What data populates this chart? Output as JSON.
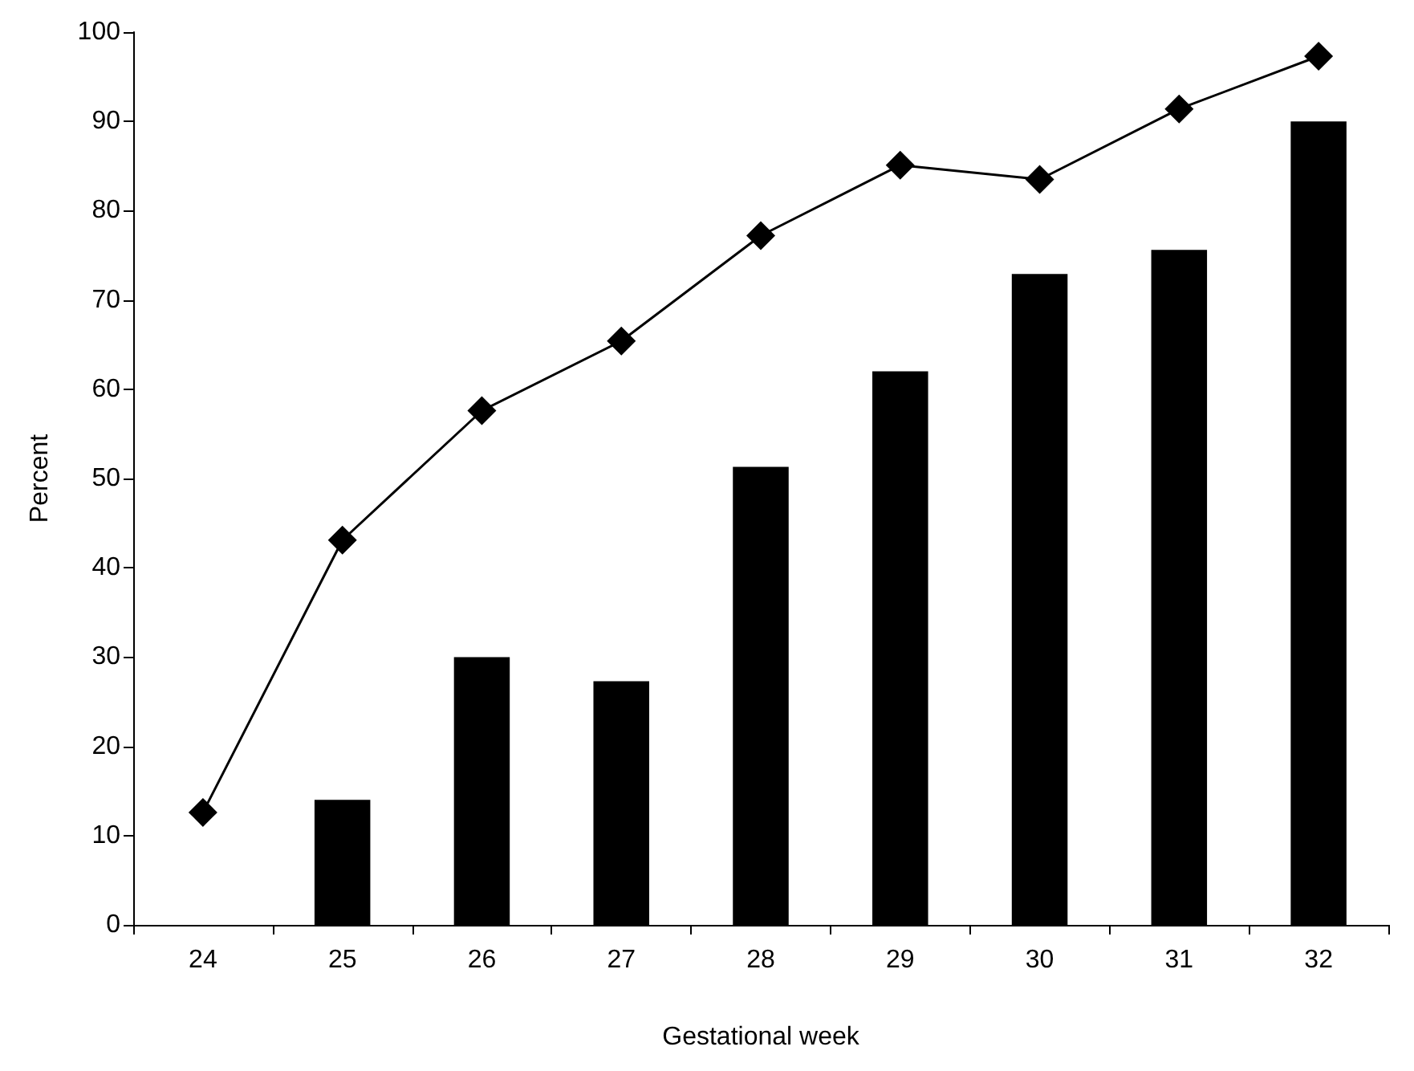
{
  "chart_data": {
    "type": "bar",
    "xlabel": "Gestational week",
    "ylabel": "Percent",
    "categories": [
      "24",
      "25",
      "26",
      "27",
      "28",
      "29",
      "30",
      "31",
      "32"
    ],
    "series": [
      {
        "color": "#000000",
        "values": [
          null,
          14,
          30,
          27.3,
          51.3,
          62,
          72.9,
          75.6,
          90
        ]
      },
      {
        "type": "line",
        "color": "#000000",
        "marker": "diamond",
        "line_style": "solid",
        "values": [
          12.6,
          43.1,
          57.6,
          65.4,
          77.2,
          85.1,
          83.5,
          91.4,
          97.3
        ]
      }
    ],
    "ylim": [
      0,
      100
    ],
    "yticks": [
      0,
      10,
      20,
      30,
      40,
      50,
      60,
      70,
      80,
      90,
      100
    ],
    "grid": false
  }
}
